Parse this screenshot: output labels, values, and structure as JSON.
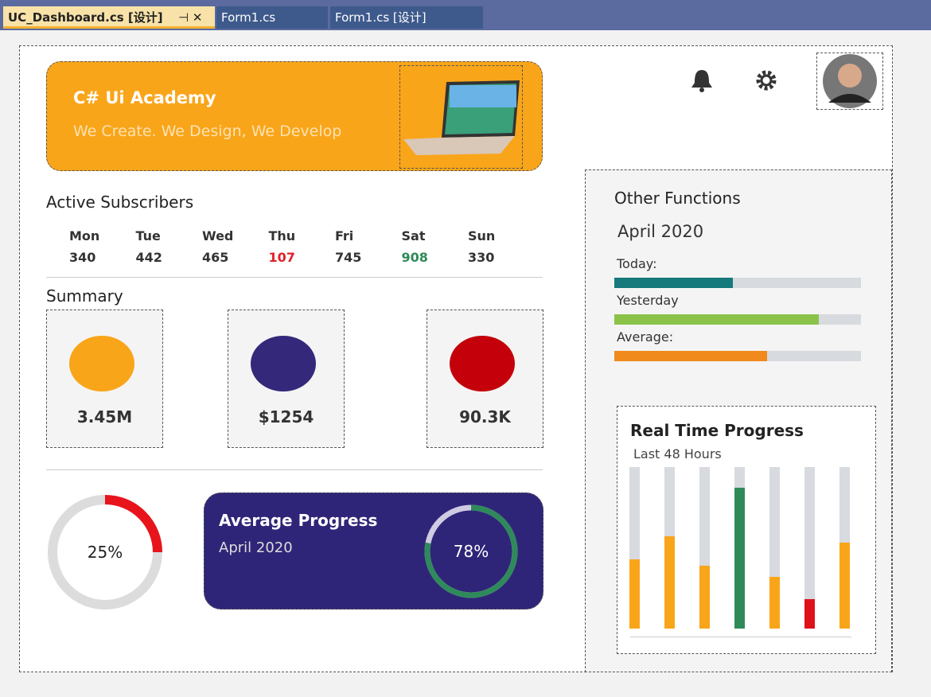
{
  "tabs": [
    "UC_Dashboard.cs [设计]",
    "Form1.cs",
    "Form1.cs [设计]"
  ],
  "banner": {
    "title": "C# Ui Academy",
    "subtitle": "We Create. We Design, We Develop"
  },
  "subscribers": {
    "title": "Active Subscribers",
    "days": [
      {
        "day": "Mon",
        "count": 340,
        "color": "#333333"
      },
      {
        "day": "Tue",
        "count": 442,
        "color": "#333333"
      },
      {
        "day": "Wed",
        "count": 465,
        "color": "#333333"
      },
      {
        "day": "Thu",
        "count": 107,
        "color": "#e0202a"
      },
      {
        "day": "Fri",
        "count": 745,
        "color": "#333333"
      },
      {
        "day": "Sat",
        "count": 908,
        "color": "#2e8b57"
      },
      {
        "day": "Sun",
        "count": 330,
        "color": "#333333"
      }
    ]
  },
  "summary": {
    "title": "Summary",
    "cards": [
      {
        "value": "3.45M",
        "color": "#f9a51a"
      },
      {
        "value": "$1254",
        "color": "#33287a"
      },
      {
        "value": "90.3K",
        "color": "#c4000a"
      }
    ]
  },
  "ring": {
    "value": 25,
    "label": "25%",
    "color": "#e8141c"
  },
  "average_progress": {
    "title": "Average Progress",
    "subtitle": "April 2020",
    "value": 78,
    "label": "78%",
    "color": "#2f8a5b"
  },
  "other_functions": {
    "title": "Other Functions",
    "month": "April 2020",
    "bars": [
      {
        "label": "Today:",
        "value": 48,
        "color": "#16797c"
      },
      {
        "label": "Yesterday",
        "value": 83,
        "color": "#8bc34a"
      },
      {
        "label": "Average:",
        "value": 62,
        "color": "#f08a1c"
      }
    ]
  },
  "real_time": {
    "title": "Real Time Progress",
    "subtitle": "Last 48 Hours",
    "bars": [
      {
        "value": 43,
        "color": "#f9a51a"
      },
      {
        "value": 57,
        "color": "#f9a51a"
      },
      {
        "value": 39,
        "color": "#f9a51a"
      },
      {
        "value": 87,
        "color": "#2e8b57"
      },
      {
        "value": 32,
        "color": "#f9a51a"
      },
      {
        "value": 18,
        "color": "#e0101a"
      },
      {
        "value": 53,
        "color": "#f9a51a"
      }
    ]
  }
}
